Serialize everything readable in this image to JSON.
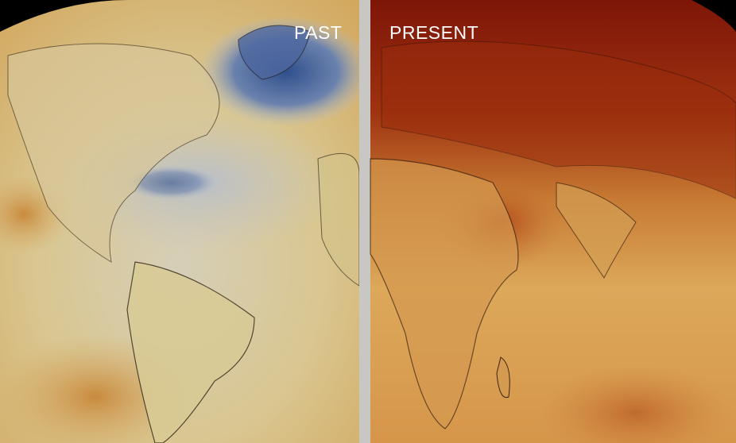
{
  "labels": {
    "past": "PAST",
    "present": "PRESENT"
  }
}
